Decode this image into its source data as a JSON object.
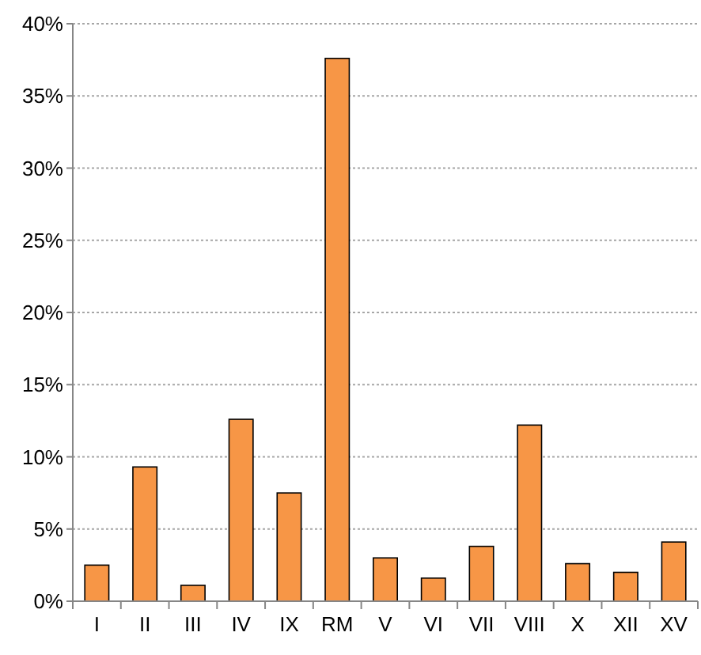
{
  "chart_data": {
    "type": "bar",
    "categories": [
      "I",
      "II",
      "III",
      "IV",
      "IX",
      "RM",
      "V",
      "VI",
      "VII",
      "VIII",
      "X",
      "XII",
      "XV"
    ],
    "values": [
      2.5,
      9.3,
      1.1,
      12.6,
      7.5,
      37.6,
      3.0,
      1.6,
      3.8,
      12.2,
      2.6,
      2.0,
      4.1
    ],
    "color": "#f79646",
    "ylim": [
      0,
      40
    ],
    "yticks": [
      {
        "value": 0,
        "label": "0%"
      },
      {
        "value": 5,
        "label": "5%"
      },
      {
        "value": 10,
        "label": "10%"
      },
      {
        "value": 15,
        "label": "15%"
      },
      {
        "value": 20,
        "label": "20%"
      },
      {
        "value": 25,
        "label": "25%"
      },
      {
        "value": 30,
        "label": "30%"
      },
      {
        "value": 35,
        "label": "35%"
      },
      {
        "value": 40,
        "label": "40%"
      }
    ],
    "grid": "y"
  }
}
